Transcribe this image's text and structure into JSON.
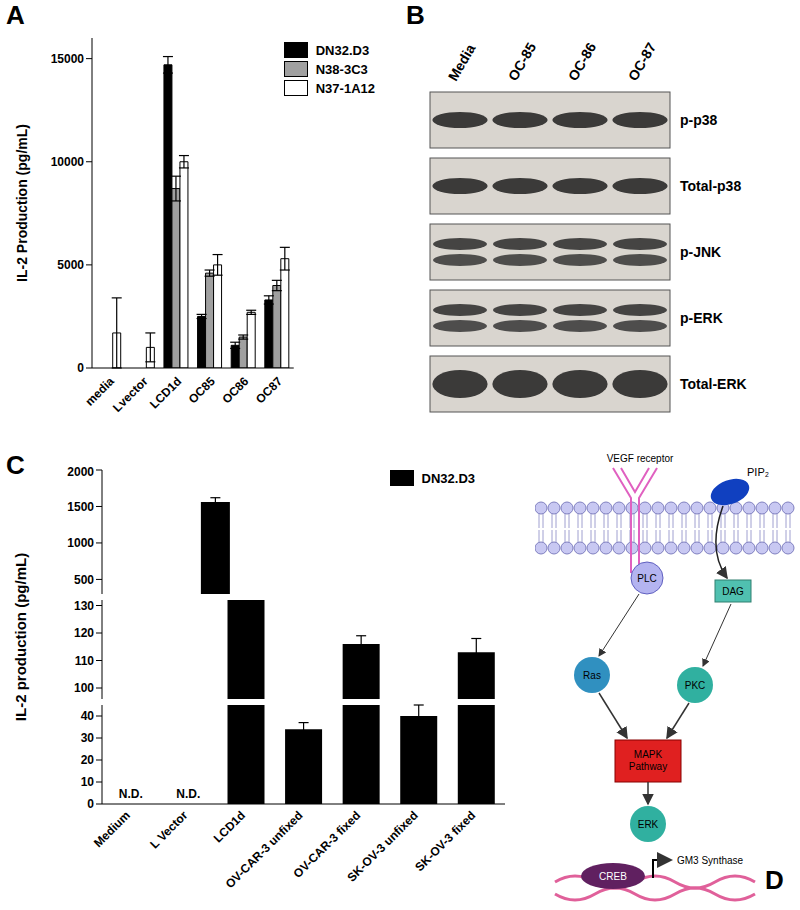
{
  "chart_data": [
    {
      "title": "A",
      "type": "bar",
      "ylabel": "IL-2 Production (pg/mL)",
      "categories": [
        "media",
        "Lvector",
        "LCD1d",
        "OC85",
        "OC86",
        "OC87"
      ],
      "series": [
        {
          "name": "DN32.D3",
          "color": "#000000",
          "values": [
            0,
            0,
            14700,
            2500,
            1100,
            3300
          ],
          "errors": [
            null,
            null,
            400,
            100,
            150,
            200
          ]
        },
        {
          "name": "N38-3C3",
          "color": "#a0a0a0",
          "values": [
            0,
            0,
            8700,
            4600,
            1500,
            4000
          ],
          "errors": [
            null,
            null,
            600,
            150,
            100,
            250
          ]
        },
        {
          "name": "N37-1A12",
          "color": "#ffffff",
          "values": [
            1700,
            1000,
            10000,
            5000,
            2700,
            5300
          ],
          "errors": [
            1700,
            700,
            300,
            500,
            100,
            550
          ]
        }
      ],
      "ylim": [
        0,
        16000
      ],
      "yticks": [
        0,
        5000,
        10000,
        15000
      ],
      "legend": "top-right"
    },
    {
      "title": "C",
      "type": "bar",
      "ylabel": "IL-2 production (pg/mL)",
      "categories": [
        "Medium",
        "L Vector",
        "LCD1d",
        "OV-CAR-3 unfixed",
        "OV-CAR-3 fixed",
        "SK-OV-3 unfixed",
        "SK-OV-3 fixed"
      ],
      "series": [
        {
          "name": "DN32.D3",
          "color": "#000000",
          "values": [
            null,
            null,
            1560,
            34,
            116,
            40,
            113
          ],
          "errors": [
            null,
            null,
            60,
            3,
            3,
            5,
            5
          ],
          "value_labels": [
            "N.D.",
            "N.D.",
            null,
            null,
            null,
            null,
            null
          ]
        }
      ],
      "y_segments": [
        {
          "ylim": [
            300,
            2000
          ],
          "yticks": [
            500,
            1000,
            1500,
            2000
          ]
        },
        {
          "ylim": [
            96,
            132
          ],
          "yticks": [
            100,
            110,
            120,
            130
          ]
        },
        {
          "ylim": [
            0,
            45
          ],
          "yticks": [
            0,
            10,
            20,
            30,
            40
          ]
        }
      ],
      "legend": "top-right"
    }
  ],
  "blot": {
    "title": "B",
    "lanes": [
      "Media",
      "OC-85",
      "OC-86",
      "OC-87"
    ],
    "rows": [
      "p-p38",
      "Total-p38",
      "p-JNK",
      "p-ERK",
      "Total-ERK"
    ]
  },
  "diagram": {
    "title": "D",
    "receptor": "VEGF receptor",
    "lipid": "PIP₂",
    "plc": "PLC",
    "dag": "DAG",
    "ras": "Ras",
    "pkc": "PKC",
    "mapk": "MAPK Pathway",
    "erk": "ERK",
    "creb": "CREB",
    "gene": "GM3 Synthase"
  }
}
